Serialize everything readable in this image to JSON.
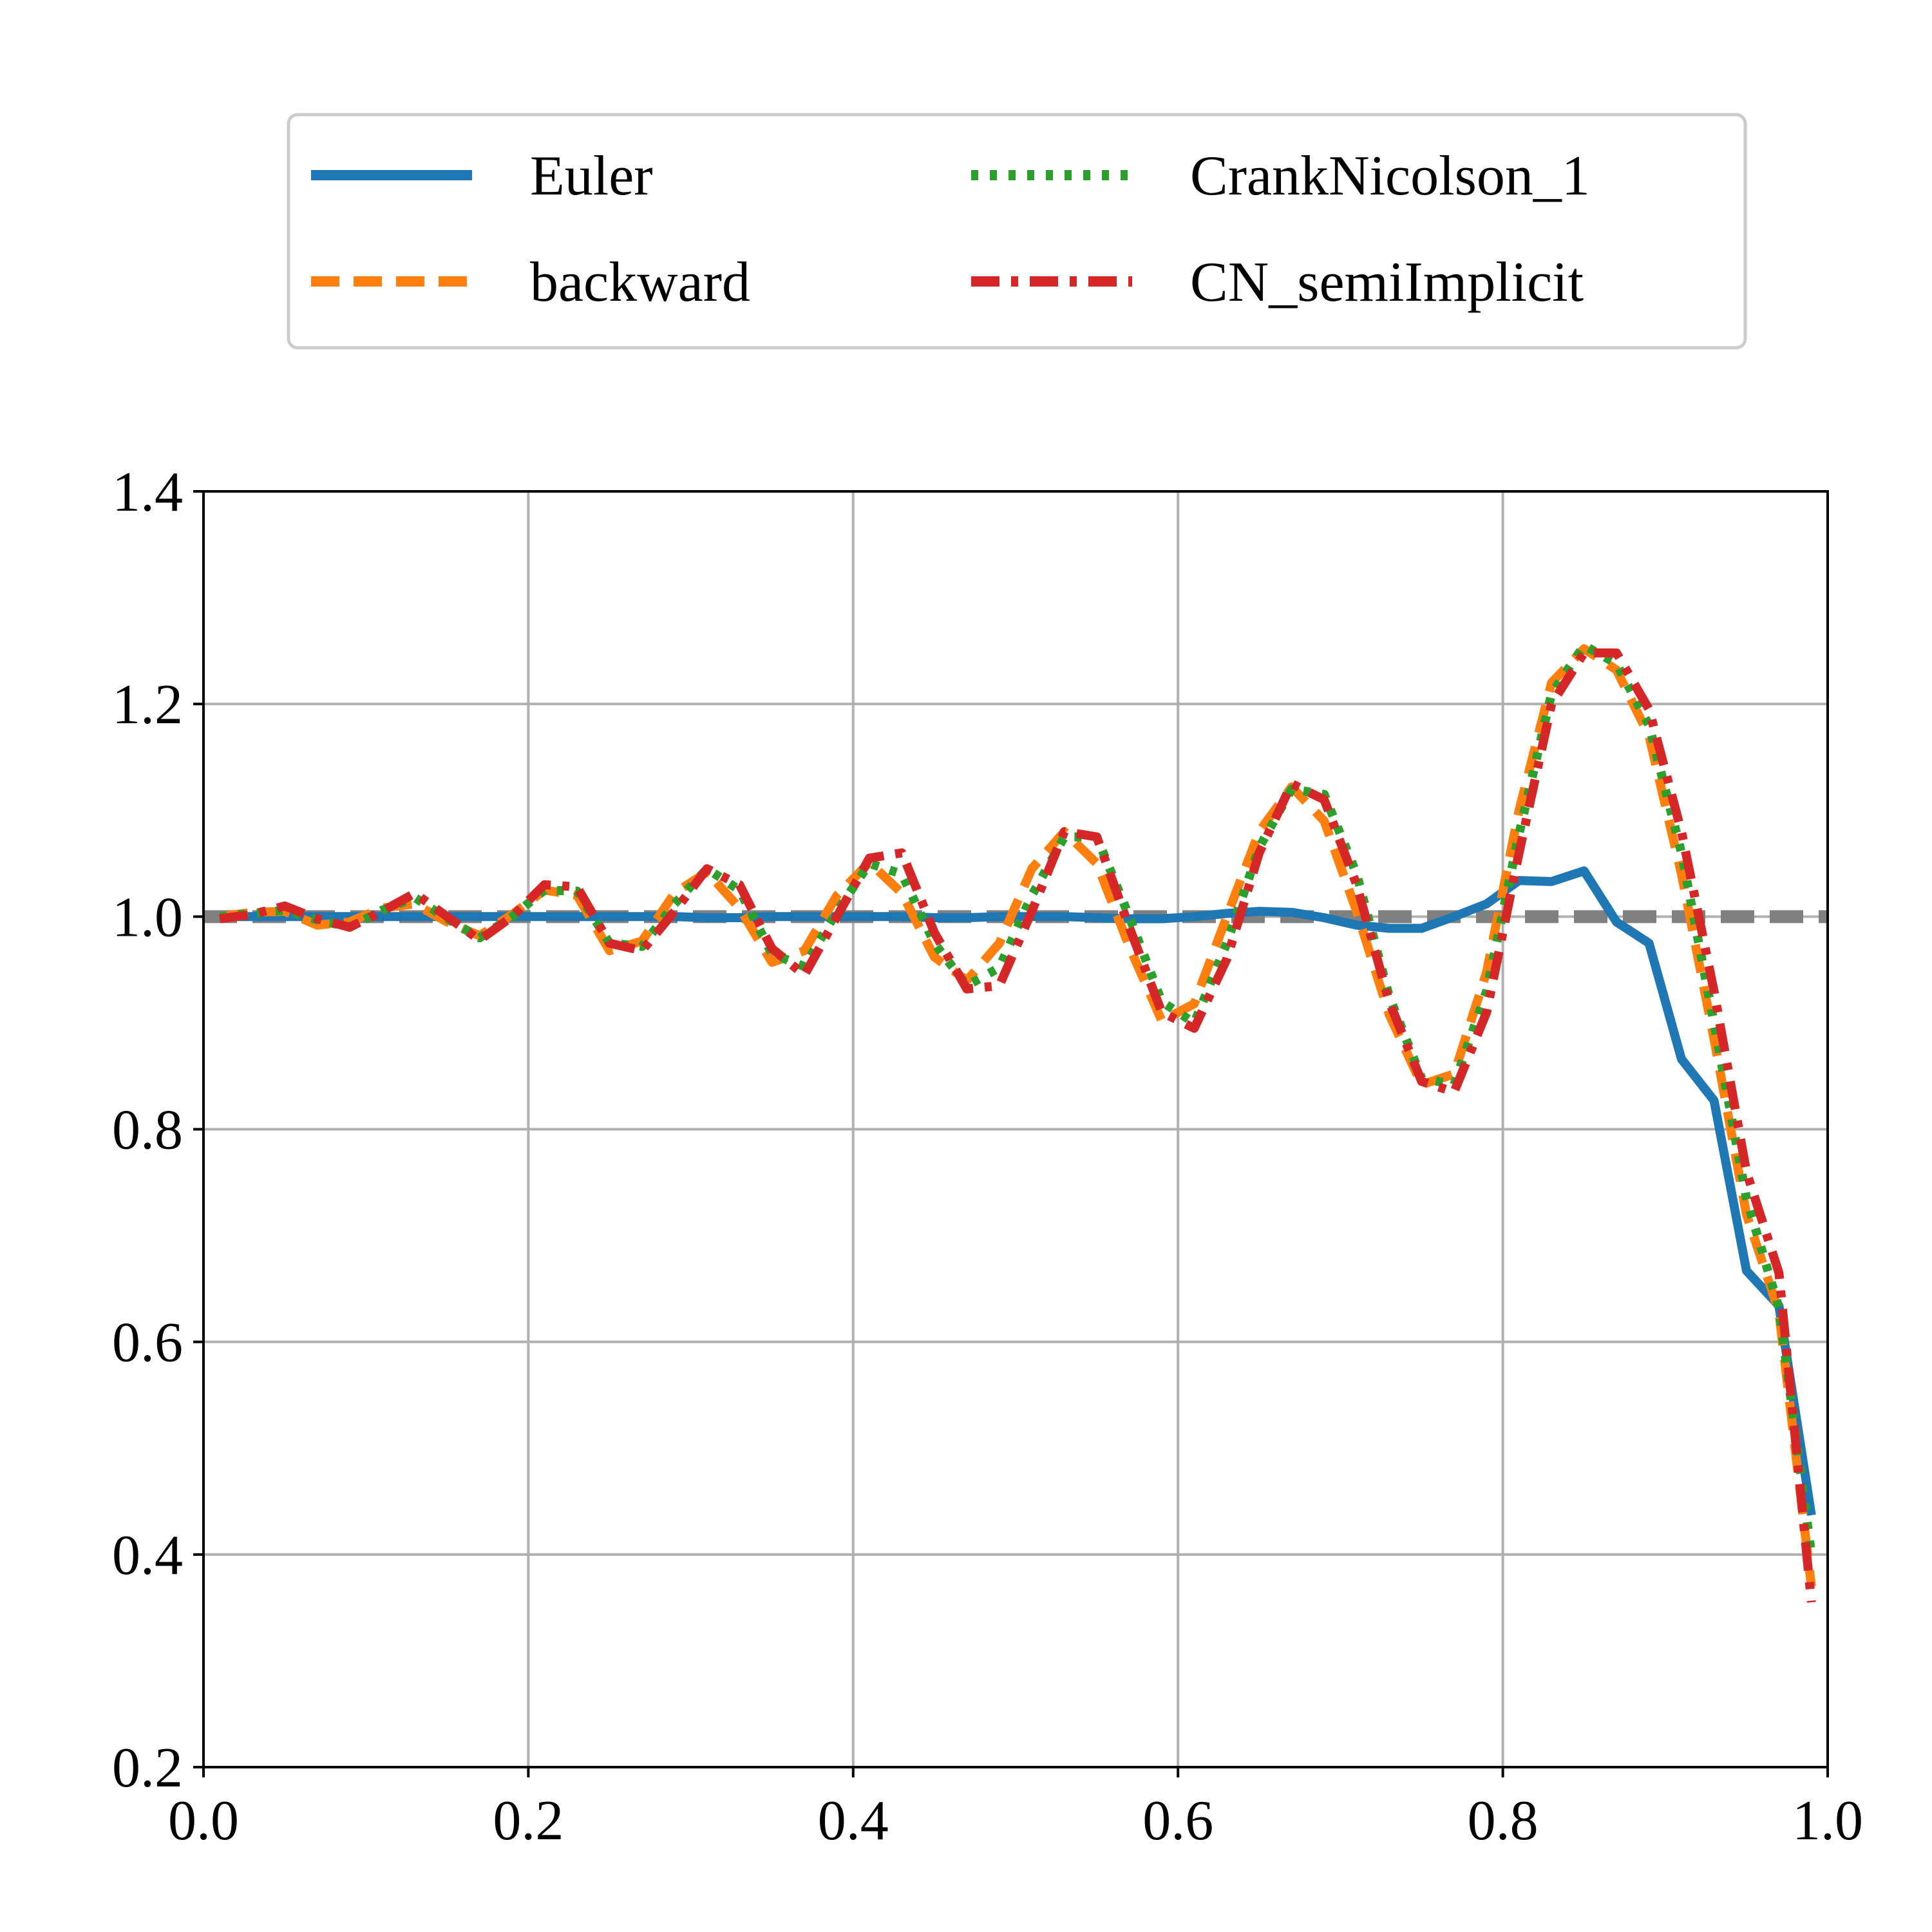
{
  "chart_data": {
    "type": "line",
    "title": "",
    "xlabel": "",
    "ylabel": "",
    "xlim": [
      0.0,
      1.0
    ],
    "ylim": [
      0.2,
      1.4
    ],
    "xticks": [
      "0.0",
      "0.2",
      "0.4",
      "0.6",
      "0.8",
      "1.0"
    ],
    "yticks": [
      "0.2",
      "0.4",
      "0.6",
      "0.8",
      "1.0",
      "1.2",
      "1.4"
    ],
    "grid": true,
    "legend_position": "top-center, outside plot, 2 columns",
    "reference_line": {
      "y": 1.0,
      "style": "dashed",
      "color": "#808080"
    },
    "series": [
      {
        "name": "Euler",
        "color": "#1f77b4",
        "style": "solid",
        "x": [
          0.01,
          0.03,
          0.05,
          0.07,
          0.09,
          0.11,
          0.13,
          0.15,
          0.17,
          0.19,
          0.21,
          0.23,
          0.25,
          0.27,
          0.29,
          0.31,
          0.33,
          0.35,
          0.37,
          0.39,
          0.41,
          0.43,
          0.45,
          0.47,
          0.49,
          0.51,
          0.53,
          0.55,
          0.57,
          0.59,
          0.61,
          0.63,
          0.65,
          0.67,
          0.69,
          0.71,
          0.73,
          0.75,
          0.77,
          0.79,
          0.81,
          0.83,
          0.85,
          0.87,
          0.89,
          0.91,
          0.93,
          0.95,
          0.97,
          0.99
        ],
        "y": [
          1.0,
          1.0,
          1.0,
          1.0,
          1.0,
          1.0,
          1.0,
          1.0,
          1.0,
          1.0,
          1.0,
          1.0,
          1.0,
          1.0,
          1.0,
          0.999,
          0.999,
          1.0,
          1.0,
          1.0,
          1.0,
          1.0,
          0.999,
          0.999,
          1.0,
          1.0,
          1.0,
          0.999,
          0.998,
          0.998,
          1.0,
          1.003,
          1.005,
          1.004,
          0.999,
          0.992,
          0.989,
          0.989,
          1.0,
          1.012,
          1.034,
          1.033,
          1.043,
          0.995,
          0.975,
          0.866,
          0.827,
          0.667,
          0.634,
          0.437
        ]
      },
      {
        "name": "backward",
        "color": "#ff7f0e",
        "style": "dashed",
        "x": [
          0.01,
          0.03,
          0.05,
          0.07,
          0.09,
          0.11,
          0.13,
          0.15,
          0.17,
          0.19,
          0.21,
          0.23,
          0.25,
          0.27,
          0.29,
          0.31,
          0.33,
          0.35,
          0.37,
          0.39,
          0.41,
          0.43,
          0.45,
          0.47,
          0.49,
          0.51,
          0.53,
          0.55,
          0.57,
          0.59,
          0.61,
          0.63,
          0.65,
          0.67,
          0.69,
          0.71,
          0.73,
          0.75,
          0.77,
          0.79,
          0.81,
          0.83,
          0.85,
          0.87,
          0.89,
          0.91,
          0.93,
          0.95,
          0.97,
          0.99
        ],
        "y": [
          1.0,
          1.004,
          1.005,
          0.992,
          0.995,
          1.008,
          1.012,
          0.995,
          0.982,
          1.002,
          1.025,
          1.02,
          0.968,
          0.977,
          1.022,
          1.042,
          1.008,
          0.957,
          0.968,
          1.02,
          1.051,
          1.022,
          0.962,
          0.94,
          0.975,
          1.045,
          1.08,
          1.05,
          0.972,
          0.902,
          0.918,
          1.0,
          1.08,
          1.122,
          1.09,
          1.005,
          0.908,
          0.842,
          0.852,
          0.948,
          1.1,
          1.22,
          1.252,
          1.232,
          1.17,
          1.04,
          0.885,
          0.72,
          0.628,
          0.37
        ]
      },
      {
        "name": "CrankNicolson_1",
        "color": "#2ca02c",
        "style": "dotted",
        "x": [
          0.01,
          0.03,
          0.05,
          0.07,
          0.09,
          0.11,
          0.13,
          0.15,
          0.17,
          0.19,
          0.21,
          0.23,
          0.25,
          0.27,
          0.29,
          0.31,
          0.33,
          0.35,
          0.37,
          0.39,
          0.41,
          0.43,
          0.45,
          0.47,
          0.49,
          0.51,
          0.53,
          0.55,
          0.57,
          0.59,
          0.61,
          0.63,
          0.65,
          0.67,
          0.69,
          0.71,
          0.73,
          0.75,
          0.77,
          0.79,
          0.81,
          0.83,
          0.85,
          0.87,
          0.89,
          0.91,
          0.93,
          0.95,
          0.97,
          0.99
        ],
        "y": [
          1.0,
          1.003,
          1.006,
          0.997,
          0.99,
          1.006,
          1.018,
          0.998,
          0.98,
          1.0,
          1.025,
          1.024,
          0.975,
          0.972,
          1.012,
          1.045,
          1.025,
          0.965,
          0.953,
          1.005,
          1.05,
          1.04,
          0.975,
          0.935,
          0.952,
          1.02,
          1.075,
          1.075,
          1.0,
          0.92,
          0.9,
          0.975,
          1.065,
          1.12,
          1.115,
          1.04,
          0.925,
          0.848,
          0.842,
          0.93,
          1.078,
          1.21,
          1.255,
          1.238,
          1.18,
          1.06,
          0.9,
          0.735,
          0.632,
          0.4
        ]
      },
      {
        "name": "CN_semiImplicit",
        "color": "#d62728",
        "style": "dashdot",
        "x": [
          0.01,
          0.03,
          0.05,
          0.07,
          0.09,
          0.11,
          0.13,
          0.15,
          0.17,
          0.19,
          0.21,
          0.23,
          0.25,
          0.27,
          0.29,
          0.31,
          0.33,
          0.35,
          0.37,
          0.39,
          0.41,
          0.43,
          0.45,
          0.47,
          0.49,
          0.51,
          0.53,
          0.55,
          0.57,
          0.59,
          0.61,
          0.63,
          0.65,
          0.67,
          0.69,
          0.71,
          0.73,
          0.75,
          0.77,
          0.79,
          0.81,
          0.83,
          0.85,
          0.87,
          0.89,
          0.91,
          0.93,
          0.95,
          0.97,
          0.99
        ],
        "y": [
          0.998,
          1.002,
          1.01,
          0.998,
          0.99,
          1.005,
          1.022,
          1.0,
          0.978,
          1.0,
          1.03,
          1.028,
          0.975,
          0.968,
          1.005,
          1.045,
          1.03,
          0.97,
          0.945,
          1.0,
          1.055,
          1.06,
          0.985,
          0.932,
          0.935,
          1.005,
          1.08,
          1.075,
          0.99,
          0.91,
          0.895,
          0.96,
          1.06,
          1.125,
          1.11,
          1.03,
          0.92,
          0.845,
          0.835,
          0.91,
          1.06,
          1.2,
          1.248,
          1.248,
          1.195,
          1.08,
          0.93,
          0.76,
          0.665,
          0.355
        ]
      }
    ]
  }
}
